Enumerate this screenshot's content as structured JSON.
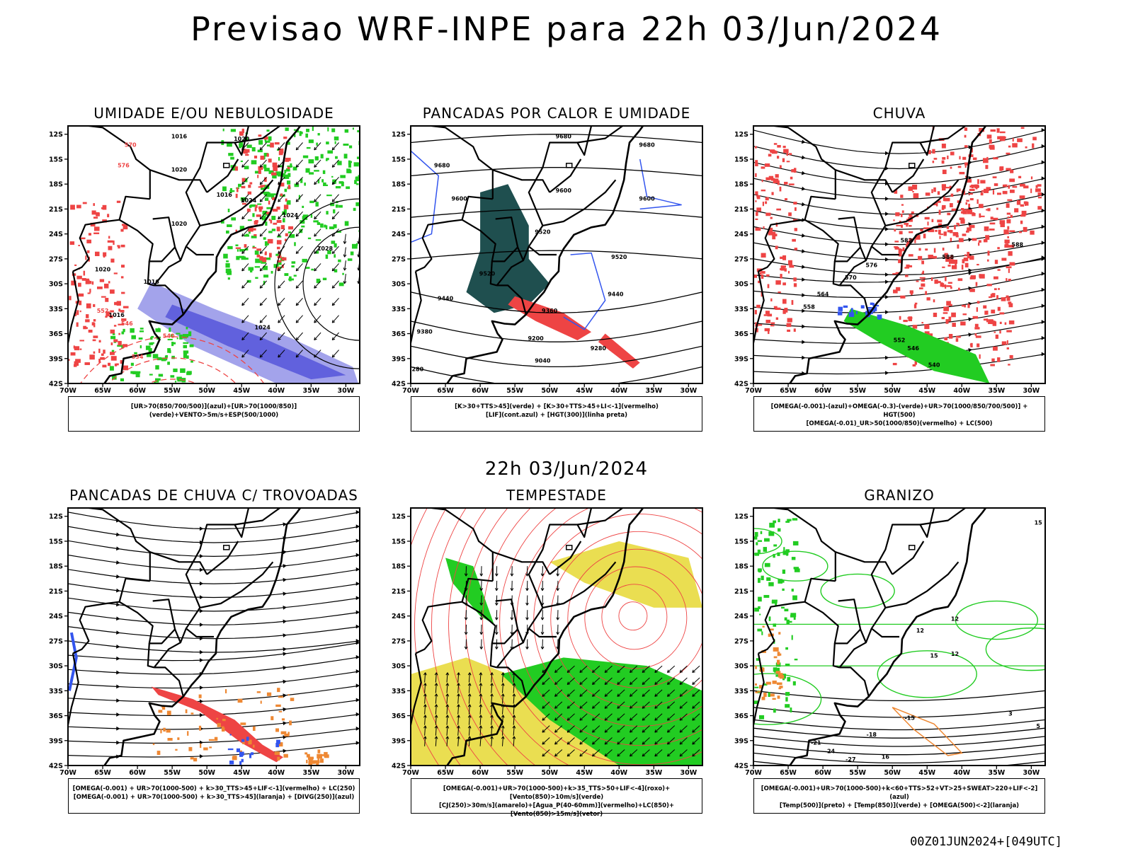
{
  "main_title": "Previsao WRF-INPE  para 22h 03/Jun/2024",
  "row_title": "22h 03/Jun/2024",
  "footer_stamp": "00Z01JUN2024+[049UTC]",
  "axes": {
    "lat_labels": [
      "12S",
      "15S",
      "18S",
      "21S",
      "24S",
      "27S",
      "30S",
      "33S",
      "36S",
      "39S",
      "42S"
    ],
    "lon_labels": [
      "70W",
      "65W",
      "60W",
      "55W",
      "50W",
      "45W",
      "40W",
      "35W",
      "30W"
    ]
  },
  "colors": {
    "humidity_blue": "#8c8ce6",
    "humidity_deep_blue": "#5a5adc",
    "green": "#22cc22",
    "red": "#ee4444",
    "lif_blue": "#3355ee",
    "dark_teal": "#1f4f4f",
    "yellow": "#e6d832",
    "orange": "#ee8833"
  },
  "panels": [
    {
      "title": "UMIDADE E/OU NEBULOSIDADE",
      "legend": [
        "[UR>70(850/700/500)](azul)+[UR>70(1000/850)](verde)+VENTO>5m/s+ESP(500/1000)"
      ],
      "labels": [
        "1016",
        "1020",
        "1020",
        "1016",
        "1020",
        "1024",
        "1024",
        "1028",
        "1020",
        "1016",
        "1016",
        "1024",
        "570",
        "576",
        "552",
        "546",
        "540",
        "534"
      ]
    },
    {
      "title": "PANCADAS POR CALOR E UMIDADE",
      "legend": [
        "[K>30+TTS>45](verde) + [K>30+TTS>45+LI<-1](vermelho)",
        "[LIF](cont.azul) + [HGT(300)](linha preta)"
      ],
      "labels": [
        "9680",
        "9680",
        "9600",
        "9600",
        "9520",
        "9520",
        "9520",
        "9440",
        "9440",
        "9360",
        "9380",
        "9200",
        "9280",
        "9040",
        "9680",
        "9600",
        "280"
      ]
    },
    {
      "title": "CHUVA",
      "legend": [
        "[OMEGA(-0.001)-(azul)+OMEGA(-0.3)-(verde)+UR>70(1000/850/700/500)] + HGT(500)",
        "[OMEGA(-0.01)_UR>50(1000/850)(vermelho) + LC(500)"
      ],
      "labels": [
        "588",
        "582",
        "576",
        "570",
        "564",
        "558",
        "552",
        "546",
        "540",
        "588"
      ]
    },
    {
      "title": "PANCADAS DE CHUVA C/ TROVOADAS",
      "legend": [
        "[OMEGA(-0.001) + UR>70(1000-500) + k>30_TTS>45+LIF<-1](vermelho) + LC(250)",
        "[OMEGA(-0.001) + UR>70(1000-500) + k>30_TTS>45](laranja) + [DIVG(250)](azul)"
      ],
      "labels": []
    },
    {
      "title": "TEMPESTADE",
      "legend": [
        "[OMEGA(-0.001)+UR>70(1000-500)+k>35_TTS>50+LIF<-4](roxo)+[Vento(850)>10m/s](verde)",
        "[CJ(250)>30m/s](amarelo)+[Agua_P(40-60mm)](vermelho)+LC(850)+[Vento(850)>15m/s](vetor)"
      ],
      "labels": []
    },
    {
      "title": "GRANIZO",
      "legend": [
        "[OMEGA(-0.001)+UR>70(1000-500)+k<60+TTS>52+VT>25+SWEAT>220+LIF<-2](azul)",
        "[Temp(500)](preto) + [Temp(850)](verde) + [OMEGA(500)<-2](laranja)"
      ],
      "labels": [
        "15",
        "12",
        "12",
        "12",
        "15",
        "-15",
        "-18",
        "-21",
        "-24",
        "-27",
        "16",
        "5",
        "3"
      ]
    }
  ]
}
